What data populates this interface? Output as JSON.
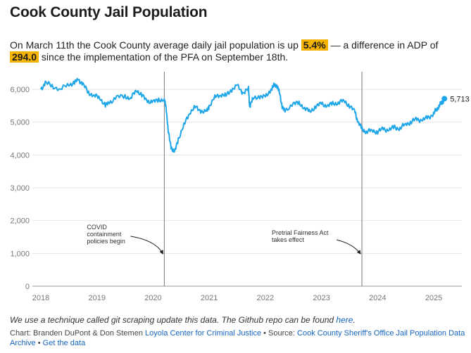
{
  "header": {
    "title": "Cook County Jail Population",
    "subtitle_part1": "On March 11th the Cook County average daily jail population is up ",
    "highlight_pct": "5.4%",
    "subtitle_part2": " — a difference in ADP of ",
    "highlight_diff": "294.0",
    "subtitle_part3": " since the implementation of the PFA on September 18th."
  },
  "note": {
    "text": "We use a technique called git scraping update this data. The Github repo can be found ",
    "link": "here",
    "end": "."
  },
  "footer": {
    "chart_prefix": "Chart: Branden DuPont & Don Stemen ",
    "chart_org": "Loyola Center for Criminal Justice",
    "sep1": " • Source: ",
    "source": "Cook County Sheriff's Office Jail Population Data Archive",
    "sep2": " • ",
    "get_data": "Get the data"
  },
  "colors": {
    "line": "#1ea6e8",
    "highlight": "#f5b301",
    "link": "#1565c0"
  },
  "chart_data": {
    "type": "line",
    "title": "Cook County Jail Population",
    "xlabel": "",
    "ylabel": "",
    "xlim": [
      2018.0,
      2025.25
    ],
    "ylim": [
      0,
      6000
    ],
    "y_ticks": [
      0,
      1000,
      2000,
      3000,
      4000,
      5000,
      6000
    ],
    "y_tick_labels": [
      "0",
      "1,000",
      "2,000",
      "3,000",
      "4,000",
      "5,000",
      "6,000"
    ],
    "x_ticks": [
      2018,
      2019,
      2020,
      2021,
      2022,
      2023,
      2024,
      2025
    ],
    "x_tick_labels": [
      "2018",
      "2019",
      "2020",
      "2021",
      "2022",
      "2023",
      "2024",
      "2025"
    ],
    "grid": true,
    "series": [
      {
        "name": "Average daily jail population",
        "x": [
          2018.0,
          2018.08,
          2018.2,
          2018.35,
          2018.5,
          2018.6,
          2018.67,
          2018.75,
          2018.85,
          2018.95,
          2019.05,
          2019.15,
          2019.22,
          2019.35,
          2019.5,
          2019.6,
          2019.7,
          2019.8,
          2019.9,
          2020.0,
          2020.1,
          2020.2,
          2020.23,
          2020.27,
          2020.32,
          2020.38,
          2020.45,
          2020.55,
          2020.65,
          2020.75,
          2020.85,
          2020.95,
          2021.0,
          2021.1,
          2021.2,
          2021.3,
          2021.4,
          2021.5,
          2021.6,
          2021.7,
          2021.72,
          2021.78,
          2021.9,
          2022.0,
          2022.1,
          2022.15,
          2022.2,
          2022.25,
          2022.3,
          2022.35,
          2022.5,
          2022.6,
          2022.7,
          2022.8,
          2022.9,
          2023.0,
          2023.1,
          2023.2,
          2023.3,
          2023.4,
          2023.5,
          2023.6,
          2023.65,
          2023.72,
          2023.8,
          2023.9,
          2024.0,
          2024.1,
          2024.2,
          2024.3,
          2024.4,
          2024.5,
          2024.6,
          2024.7,
          2024.8,
          2024.9,
          2025.0,
          2025.05,
          2025.1,
          2025.15,
          2025.19
        ],
        "values": [
          6000,
          6200,
          6100,
          6000,
          6150,
          6200,
          6300,
          6150,
          5900,
          5800,
          5750,
          5500,
          5600,
          5750,
          5800,
          5700,
          6000,
          5800,
          5650,
          5600,
          5700,
          5650,
          5500,
          4700,
          4250,
          4050,
          4500,
          4900,
          5300,
          5450,
          5350,
          5300,
          5500,
          5750,
          5850,
          5800,
          6000,
          6100,
          5900,
          6000,
          5500,
          5700,
          5800,
          5750,
          6000,
          6100,
          6150,
          5900,
          5500,
          5300,
          5600,
          5550,
          5450,
          5300,
          5500,
          5550,
          5500,
          5550,
          5600,
          5650,
          5500,
          5300,
          5000,
          4800,
          4700,
          4750,
          4700,
          4800,
          4750,
          4850,
          4800,
          4950,
          5000,
          5100,
          5050,
          5150,
          5250,
          5400,
          5500,
          5600,
          5713
        ]
      }
    ],
    "end_label": "5,713",
    "annotations": [
      {
        "x": 2020.2,
        "label_lines": [
          "COVID",
          "containment",
          "policies begin"
        ]
      },
      {
        "x": 2023.72,
        "label_lines": [
          "Pretrial Fairness Act",
          "takes effect"
        ]
      }
    ]
  }
}
